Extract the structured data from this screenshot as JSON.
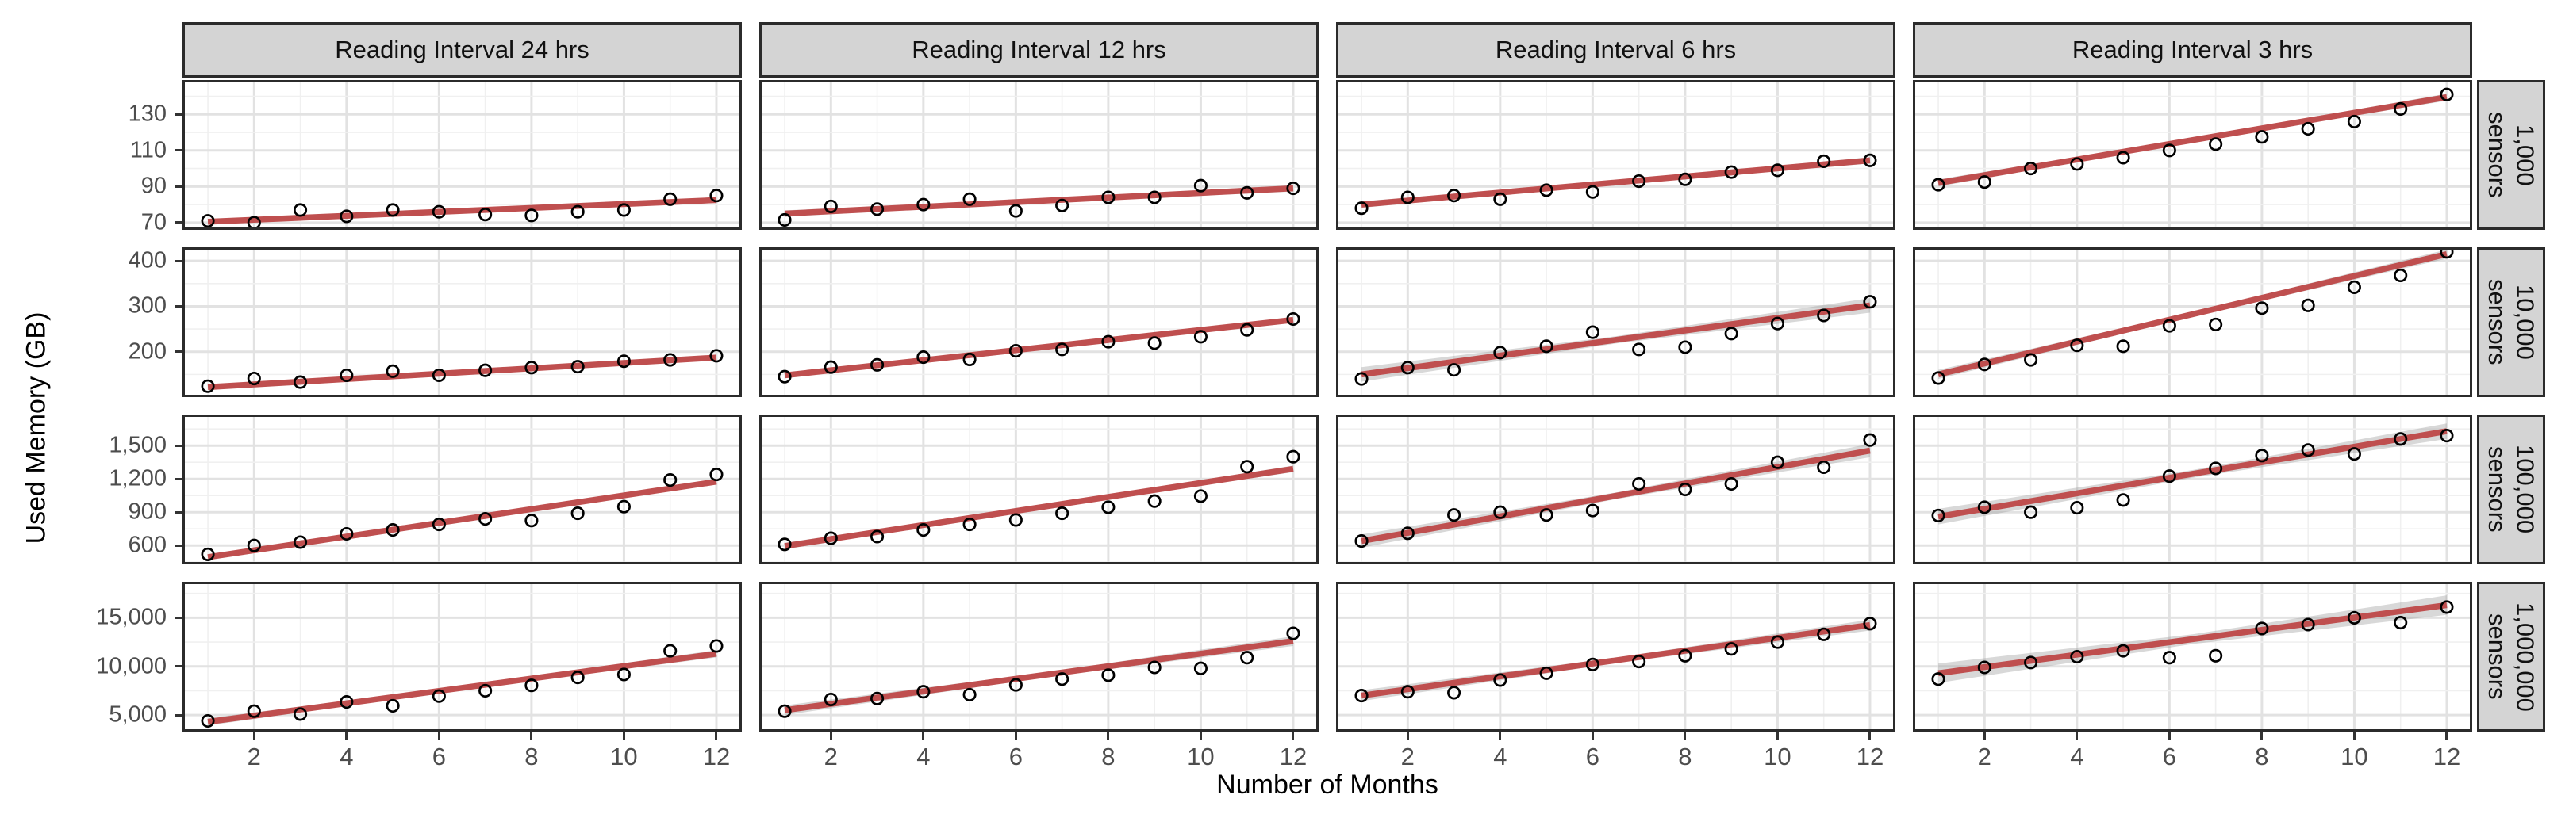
{
  "figure": {
    "xlabel": "Number of Months",
    "ylabel": "Used Memory (GB)"
  },
  "chart_data": {
    "type": "scatter",
    "title": "",
    "xlabel": "Number of Months",
    "ylabel": "Used Memory (GB)",
    "legend": "none",
    "grid": true,
    "facet_layout": "4 columns (reading interval) x 4 rows (sensor count), linear fit line with confidence band per panel",
    "x": [
      1,
      2,
      3,
      4,
      5,
      6,
      7,
      8,
      9,
      10,
      11,
      12
    ],
    "x_ticks": [
      2,
      4,
      6,
      8,
      10,
      12
    ],
    "x_range": [
      0.45,
      12.55
    ],
    "col_facets": [
      "Reading Interval 24 hrs",
      "Reading Interval 12 hrs",
      "Reading Interval 6 hrs",
      "Reading Interval 3 hrs"
    ],
    "rows": [
      {
        "facet": "1,000 sensors",
        "facet_lines": "1,000\nsensors",
        "ylim": [
          66,
          149
        ],
        "yticks": [
          70,
          90,
          110,
          130
        ],
        "yminor": [
          80,
          100,
          120,
          140
        ],
        "panels": [
          {
            "col": "Reading Interval 24 hrs",
            "points": [
              71,
              70,
              77,
              73.5,
              77,
              76,
              74.5,
              74,
              76,
              77,
              83,
              85
            ],
            "fit": [
              70.5,
              82.5
            ],
            "ci": [
              0.8,
              1.6
            ]
          },
          {
            "col": "Reading Interval 12 hrs",
            "points": [
              71.5,
              79,
              77.5,
              80,
              83,
              76.5,
              79.5,
              84,
              84,
              90.5,
              86.5,
              89
            ],
            "fit": [
              75,
              89
            ],
            "ci": [
              0.9,
              1.8
            ]
          },
          {
            "col": "Reading Interval 6 hrs",
            "points": [
              78,
              84,
              85,
              83,
              88,
              87,
              93,
              94,
              98,
              99,
              104,
              104.5
            ],
            "fit": [
              80,
              104.5
            ],
            "ci": [
              0.9,
              1.8
            ]
          },
          {
            "col": "Reading Interval 3 hrs",
            "points": [
              91,
              92.5,
              100,
              102.5,
              106,
              110,
              113.5,
              117.5,
              122,
              126,
              133,
              141
            ],
            "fit": [
              92,
              139.5
            ],
            "ci": [
              1,
              2
            ]
          }
        ]
      },
      {
        "facet": "10,000 sensors",
        "facet_lines": "10,000\nsensors",
        "ylim": [
          100,
          430
        ],
        "yticks": [
          200,
          300,
          400
        ],
        "yminor": [
          150,
          250,
          350
        ],
        "panels": [
          {
            "col": "Reading Interval 24 hrs",
            "points": [
              124,
              141,
              133,
              148,
              157,
              148,
              159,
              165,
              167,
              179,
              182,
              191
            ],
            "fit": [
              122,
              187
            ],
            "ci": [
              2,
              4
            ]
          },
          {
            "col": "Reading Interval 12 hrs",
            "points": [
              145,
              166,
              171,
              188,
              183,
              202,
              205,
              222,
              219,
              233,
              248,
              272
            ],
            "fit": [
              148,
              270
            ],
            "ci": [
              3,
              6
            ]
          },
          {
            "col": "Reading Interval 6 hrs",
            "points": [
              140,
              165,
              160,
              198,
              212,
              243,
              205,
              210,
              240,
              262,
              280,
              310
            ],
            "fit": [
              150,
              302
            ],
            "ci": [
              8,
              16
            ]
          },
          {
            "col": "Reading Interval 3 hrs",
            "points": [
              142,
              172,
              182,
              214,
              212,
              257,
              260,
              296,
              302,
              342,
              368,
              420
            ],
            "fit": [
              150,
              415
            ],
            "ci": [
              5,
              10
            ]
          }
        ]
      },
      {
        "facet": "100,000 sensors",
        "facet_lines": "100,000\nsensors",
        "ylim": [
          430,
          1780
        ],
        "yticks": [
          600,
          900,
          1200,
          1500
        ],
        "yminor": [
          450,
          750,
          1050,
          1350,
          1650
        ],
        "panels": [
          {
            "col": "Reading Interval 24 hrs",
            "points": [
              520,
              600,
              630,
              705,
              740,
              790,
              840,
              825,
              890,
              950,
              1190,
              1240
            ],
            "fit": [
              495,
              1175
            ],
            "ci": [
              12,
              25
            ]
          },
          {
            "col": "Reading Interval 12 hrs",
            "points": [
              610,
              665,
              680,
              740,
              790,
              830,
              890,
              945,
              1000,
              1045,
              1310,
              1400
            ],
            "fit": [
              595,
              1290
            ],
            "ci": [
              15,
              30
            ]
          },
          {
            "col": "Reading Interval 6 hrs",
            "points": [
              640,
              710,
              875,
              900,
              875,
              915,
              1155,
              1105,
              1155,
              1350,
              1305,
              1550
            ],
            "fit": [
              640,
              1455
            ],
            "ci": [
              30,
              60
            ]
          },
          {
            "col": "Reading Interval 3 hrs",
            "points": [
              870,
              945,
              900,
              940,
              1010,
              1225,
              1295,
              1410,
              1460,
              1425,
              1560,
              1590
            ],
            "fit": [
              860,
              1630
            ],
            "ci": [
              35,
              70
            ]
          }
        ]
      },
      {
        "facet": "1,000,000 sensors",
        "facet_lines": "1,000,000\nsensors",
        "ylim": [
          3300,
          18700
        ],
        "yticks": [
          5000,
          10000,
          15000
        ],
        "yminor": [
          7500,
          12500,
          17500
        ],
        "panels": [
          {
            "col": "Reading Interval 24 hrs",
            "points": [
              4400,
              5400,
              5100,
              6350,
              5950,
              6950,
              7500,
              8050,
              8870,
              9170,
              11600,
              12100
            ],
            "fit": [
              4300,
              11300
            ],
            "ci": [
              180,
              380
            ]
          },
          {
            "col": "Reading Interval 12 hrs",
            "points": [
              5400,
              6600,
              6700,
              7400,
              7100,
              8100,
              8700,
              9100,
              9900,
              9800,
              10900,
              13400
            ],
            "fit": [
              5500,
              12600
            ],
            "ci": [
              250,
              500
            ]
          },
          {
            "col": "Reading Interval 6 hrs",
            "points": [
              7000,
              7400,
              7300,
              8600,
              9300,
              10200,
              10500,
              11100,
              11800,
              12500,
              13300,
              14400
            ],
            "fit": [
              7000,
              14250
            ],
            "ci": [
              280,
              560
            ]
          },
          {
            "col": "Reading Interval 3 hrs",
            "points": [
              8700,
              9900,
              10400,
              11000,
              11600,
              10900,
              11100,
              13900,
              14300,
              15000,
              14500,
              16100
            ],
            "fit": [
              9300,
              16300
            ],
            "ci": [
              500,
              1000
            ]
          }
        ]
      }
    ],
    "colors": {
      "fit_line": "#bf4f4f",
      "ci_band": "#999999",
      "point_stroke": "#000000",
      "strip_bg": "#d4d4d4",
      "strip_border": "#2b2b2b",
      "panel_border": "#2b2b2b",
      "panel_bg": "#ffffff",
      "grid_major": "#e2e2e2",
      "grid_minor": "#f0f0f0",
      "tick_mark": "#333333",
      "tick_text": "#4d4d4d"
    }
  }
}
